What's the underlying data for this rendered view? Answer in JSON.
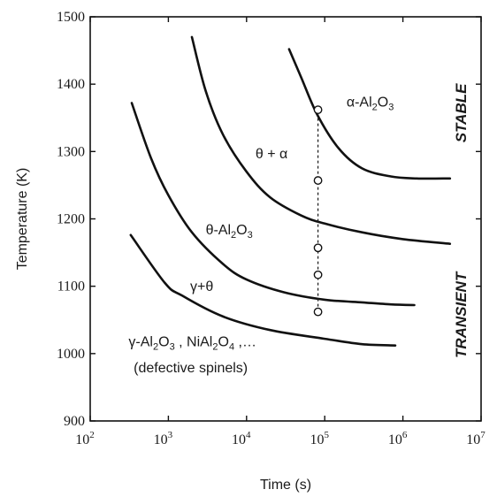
{
  "chart_data": {
    "type": "line",
    "xlabel": "Time (s)",
    "ylabel": "Temperature (K)",
    "x_scale": "log",
    "xlim": [
      100,
      10000000
    ],
    "ylim": [
      900,
      1500
    ],
    "x_ticks": [
      {
        "value": 100,
        "label": "10",
        "exp": "2"
      },
      {
        "value": 1000,
        "label": "10",
        "exp": "3"
      },
      {
        "value": 10000,
        "label": "10",
        "exp": "4"
      },
      {
        "value": 100000,
        "label": "10",
        "exp": "5"
      },
      {
        "value": 1000000,
        "label": "10",
        "exp": "6"
      },
      {
        "value": 10000000,
        "label": "10",
        "exp": "7"
      }
    ],
    "y_ticks": [
      {
        "value": 900,
        "label": "900"
      },
      {
        "value": 1000,
        "label": "1000"
      },
      {
        "value": 1100,
        "label": "1100"
      },
      {
        "value": 1200,
        "label": "1200"
      },
      {
        "value": 1300,
        "label": "1300"
      },
      {
        "value": 1400,
        "label": "1400"
      },
      {
        "value": 1500,
        "label": "1500"
      }
    ],
    "grid": false,
    "legend": "none",
    "series": [
      {
        "points": [
          [
            330,
            1176
          ],
          [
            900,
            1105
          ],
          [
            1500,
            1086
          ],
          [
            5000,
            1055
          ],
          [
            20000,
            1035
          ],
          [
            100000,
            1022
          ],
          [
            300000,
            1014
          ],
          [
            800000,
            1012
          ]
        ]
      },
      {
        "points": [
          [
            340,
            1372
          ],
          [
            600,
            1290
          ],
          [
            1000,
            1235
          ],
          [
            2000,
            1180
          ],
          [
            5000,
            1133
          ],
          [
            10000,
            1110
          ],
          [
            30000,
            1091
          ],
          [
            100000,
            1080
          ],
          [
            300000,
            1076
          ],
          [
            700000,
            1073
          ],
          [
            1400000,
            1072
          ]
        ]
      },
      {
        "points": [
          [
            2000,
            1470
          ],
          [
            3000,
            1390
          ],
          [
            5000,
            1325
          ],
          [
            10000,
            1270
          ],
          [
            20000,
            1232
          ],
          [
            50000,
            1205
          ],
          [
            100000,
            1193
          ],
          [
            300000,
            1180
          ],
          [
            1000000,
            1170
          ],
          [
            4000000,
            1163
          ]
        ]
      },
      {
        "points": [
          [
            35000,
            1452
          ],
          [
            50000,
            1410
          ],
          [
            80000,
            1355
          ],
          [
            150000,
            1305
          ],
          [
            300000,
            1275
          ],
          [
            700000,
            1263
          ],
          [
            1500000,
            1260
          ],
          [
            4000000,
            1260
          ]
        ]
      }
    ],
    "markers": [
      {
        "x": 82000,
        "y": 1362
      },
      {
        "x": 82000,
        "y": 1257
      },
      {
        "x": 82000,
        "y": 1157
      },
      {
        "x": 82000,
        "y": 1117
      },
      {
        "x": 82000,
        "y": 1062
      }
    ],
    "dashed_line": {
      "x": 82000,
      "y_from": 1062,
      "y_to": 1362
    },
    "annotations": [
      {
        "id": "alpha",
        "parts": [
          {
            "t": "α-Al"
          },
          {
            "t": "2",
            "sub": true
          },
          {
            "t": "O"
          },
          {
            "t": "3",
            "sub": true
          }
        ],
        "x": 190000,
        "y": 1367
      },
      {
        "id": "theta-alpha",
        "parts": [
          {
            "t": "θ + α"
          }
        ],
        "x": 13000,
        "y": 1290
      },
      {
        "id": "theta",
        "parts": [
          {
            "t": "θ-Al"
          },
          {
            "t": "2",
            "sub": true
          },
          {
            "t": "O"
          },
          {
            "t": "3",
            "sub": true
          }
        ],
        "x": 3000,
        "y": 1177
      },
      {
        "id": "gamma-theta",
        "parts": [
          {
            "t": "γ+θ"
          }
        ],
        "x": 1900,
        "y": 1093
      },
      {
        "id": "gamma",
        "parts": [
          {
            "t": "γ-Al"
          },
          {
            "t": "2",
            "sub": true
          },
          {
            "t": "O"
          },
          {
            "t": "3",
            "sub": true
          },
          {
            "t": " , NiAl"
          },
          {
            "t": "2",
            "sub": true
          },
          {
            "t": "O"
          },
          {
            "t": "4",
            "sub": true
          },
          {
            "t": " ,…"
          }
        ],
        "x": 310,
        "y": 1011
      },
      {
        "id": "spinels",
        "parts": [
          {
            "t": "(defective spinels)"
          }
        ],
        "x": 360,
        "y": 972
      }
    ],
    "side_labels": [
      {
        "id": "stable",
        "text": "STABLE",
        "y": 1357
      },
      {
        "id": "transient",
        "text": "TRANSIENT",
        "y": 1057
      }
    ]
  }
}
